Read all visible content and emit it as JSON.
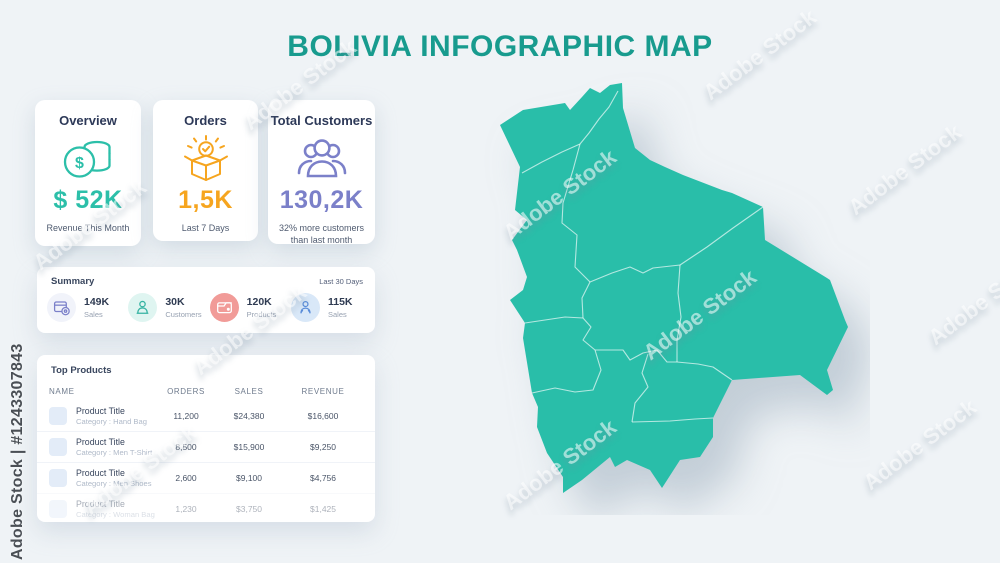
{
  "page": {
    "title": "BOLIVIA INFOGRAPHIC MAP"
  },
  "watermark": {
    "tile_text": "Adobe Stock",
    "stock_id": "Adobe Stock | #1243307843"
  },
  "colors": {
    "map_teal": "#29BEA9",
    "title_teal": "#189B8E",
    "accent_orange": "#F6A51F",
    "accent_purple": "#7B80C9",
    "stat_salmon": "#F19B98",
    "stat_blue": "#5B8DD9"
  },
  "cards": [
    {
      "title": "Overview",
      "value": "$ 52K",
      "subtitle": "Revenue This Month",
      "icon": "coins-icon",
      "accent": "#2CBFA9"
    },
    {
      "title": "Orders",
      "value": "1,5K",
      "subtitle": "Last 7 Days",
      "icon": "order-box-icon",
      "accent": "#F6A51F"
    },
    {
      "title": "Total Customers",
      "value": "130,2K",
      "subtitle": "32% more customers than last month",
      "icon": "customers-icon",
      "accent": "#7B80C9"
    }
  ],
  "summary": {
    "title": "Summary",
    "period": "Last 30 Days",
    "stats": [
      {
        "value": "149K",
        "label": "Sales",
        "icon": "sales-box-icon"
      },
      {
        "value": "30K",
        "label": "Customers",
        "icon": "customer-icon"
      },
      {
        "value": "120K",
        "label": "Products",
        "icon": "wallet-icon"
      },
      {
        "value": "115K",
        "label": "Sales",
        "icon": "person-icon"
      }
    ]
  },
  "top_products": {
    "title": "Top Products",
    "columns": [
      "NAME",
      "ORDERS",
      "SALES",
      "REVENUE"
    ],
    "rows": [
      {
        "name": "Product Title",
        "category": "Category : Hand Bag",
        "orders": "11,200",
        "sales": "$24,380",
        "revenue": "$16,600"
      },
      {
        "name": "Product Title",
        "category": "Category : Men T-Shirt",
        "orders": "8,500",
        "sales": "$15,900",
        "revenue": "$9,250"
      },
      {
        "name": "Product Title",
        "category": "Category : Men Shoes",
        "orders": "2,600",
        "sales": "$9,100",
        "revenue": "$4,756"
      },
      {
        "name": "Product Title",
        "category": "Category : Woman Bag",
        "orders": "1,230",
        "sales": "$3,750",
        "revenue": "$1,425"
      }
    ]
  },
  "map": {
    "country": "Bolivia",
    "regions_count": 9
  }
}
